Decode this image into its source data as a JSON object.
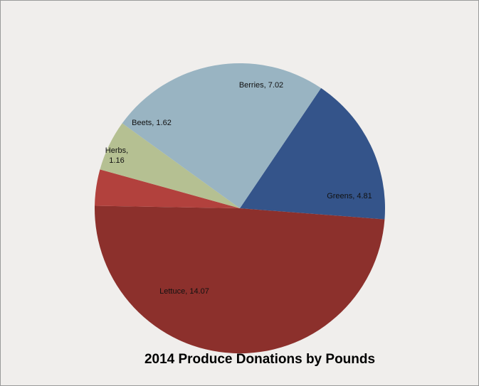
{
  "chart_data": {
    "type": "pie",
    "title": "2014 Produce Donations by Pounds",
    "slices": [
      {
        "label": "Greens",
        "value": 4.81,
        "color": "#34548a",
        "display": [
          "Greens, 4.81"
        ]
      },
      {
        "label": "Lettuce",
        "value": 14.07,
        "color": "#8c302c",
        "display": [
          "Lettuce, 14.07"
        ]
      },
      {
        "label": "Herbs",
        "value": 1.16,
        "color": "#b2413d",
        "display": [
          "Herbs,",
          "1.16"
        ]
      },
      {
        "label": "Beets",
        "value": 1.62,
        "color": "#b5c092",
        "display": [
          "Beets, 1.62"
        ]
      },
      {
        "label": "Berries",
        "value": 7.02,
        "color": "#99b4c2",
        "display": [
          "Berries, 7.02"
        ]
      }
    ],
    "legend": "none",
    "data_labels": "inside"
  }
}
